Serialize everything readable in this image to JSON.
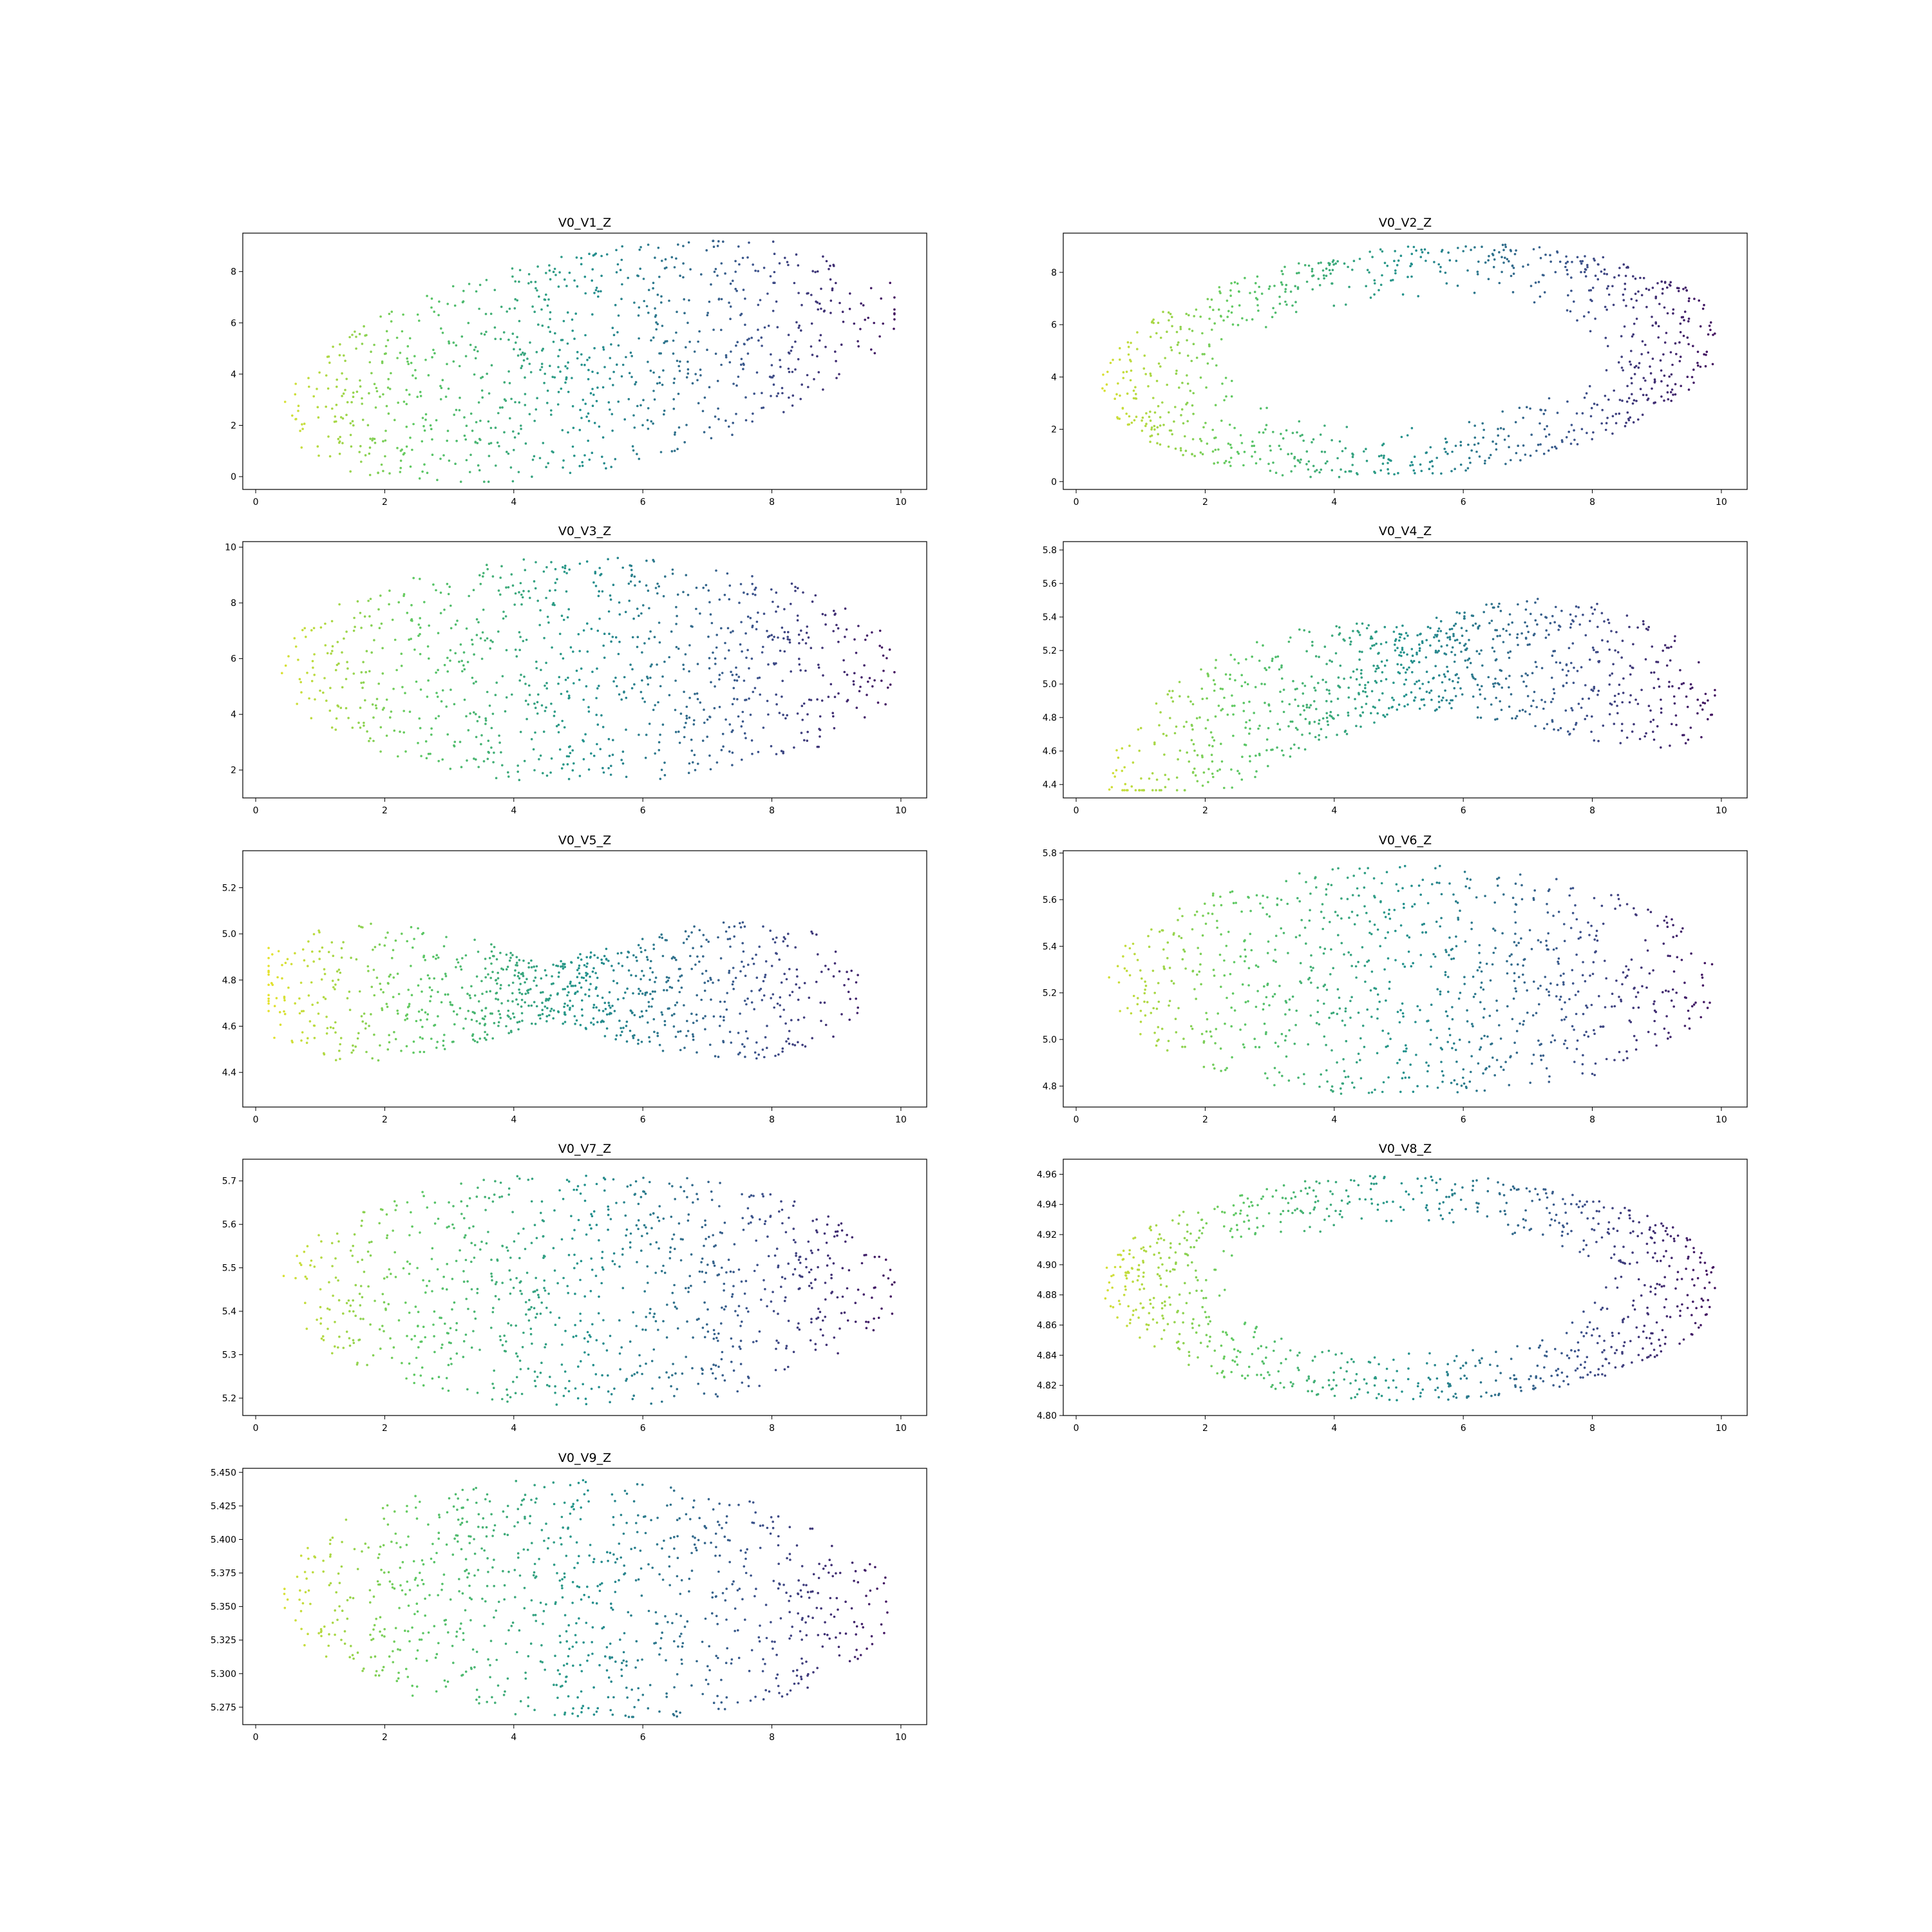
{
  "colormap": {
    "name": "viridis",
    "stops": [
      "#440154",
      "#3b528b",
      "#21918c",
      "#5ec962",
      "#fde725"
    ]
  },
  "chart_data": [
    {
      "type": "scatter",
      "title": "V0_V1_Z",
      "xlim": [
        -0.2,
        10.4
      ],
      "ylim": [
        -0.5,
        9.5
      ],
      "xticks": [
        0,
        2,
        4,
        6,
        8,
        10
      ],
      "xtick_labels": [
        "0",
        "2",
        "4",
        "6",
        "8",
        "10"
      ],
      "yticks": [
        0,
        2,
        4,
        6,
        8
      ],
      "ytick_labels": [
        "0",
        "2",
        "4",
        "6",
        "8"
      ],
      "shape": "ellipse",
      "center": [
        5.2,
        4.5
      ],
      "radii": [
        4.8,
        4.3
      ],
      "tilt": 0.12,
      "color_direction": 1,
      "grid": false,
      "legend": "none"
    },
    {
      "type": "scatter",
      "title": "V0_V2_Z",
      "xlim": [
        -0.2,
        10.4
      ],
      "ylim": [
        -0.3,
        9.5
      ],
      "xticks": [
        0,
        2,
        4,
        6,
        8,
        10
      ],
      "xtick_labels": [
        "0",
        "2",
        "4",
        "6",
        "8",
        "10"
      ],
      "yticks": [
        0,
        2,
        4,
        6,
        8
      ],
      "ytick_labels": [
        "0",
        "2",
        "4",
        "6",
        "8"
      ],
      "shape": "ring",
      "center": [
        5.2,
        4.6
      ],
      "radii": [
        4.8,
        4.4
      ],
      "tilt": 0.05,
      "color_direction": 1,
      "grid": false,
      "legend": "none"
    },
    {
      "type": "scatter",
      "title": "V0_V3_Z",
      "xlim": [
        -0.2,
        10.4
      ],
      "ylim": [
        1.0,
        10.2
      ],
      "xticks": [
        0,
        2,
        4,
        6,
        8,
        10
      ],
      "xtick_labels": [
        "0",
        "2",
        "4",
        "6",
        "8",
        "10"
      ],
      "yticks": [
        2,
        4,
        6,
        8,
        10
      ],
      "ytick_labels": [
        "2",
        "4",
        "6",
        "8",
        "10"
      ],
      "shape": "ellipse",
      "center": [
        5.2,
        5.6
      ],
      "radii": [
        4.8,
        4.1
      ],
      "tilt": 0.0,
      "color_direction": 1,
      "grid": false,
      "legend": "none"
    },
    {
      "type": "scatter",
      "title": "V0_V4_Z",
      "xlim": [
        -0.2,
        10.4
      ],
      "ylim": [
        4.32,
        5.85
      ],
      "xticks": [
        0,
        2,
        4,
        6,
        8,
        10
      ],
      "xtick_labels": [
        "0",
        "2",
        "4",
        "6",
        "8",
        "10"
      ],
      "yticks": [
        4.4,
        4.6,
        4.8,
        5.0,
        5.2,
        5.4,
        5.6,
        5.8
      ],
      "ytick_labels": [
        "4.4",
        "4.6",
        "4.8",
        "5.0",
        "5.2",
        "5.4",
        "5.6",
        "5.8"
      ],
      "shape": "wedge",
      "center": [
        5.2,
        5.1
      ],
      "radii": [
        4.8,
        0.7
      ],
      "tilt": 0.0,
      "color_direction": 1,
      "grid": false,
      "legend": "none"
    },
    {
      "type": "scatter",
      "title": "V0_V5_Z",
      "xlim": [
        -0.2,
        10.4
      ],
      "ylim": [
        4.25,
        5.36
      ],
      "xticks": [
        0,
        2,
        4,
        6,
        8,
        10
      ],
      "xtick_labels": [
        "0",
        "2",
        "4",
        "6",
        "8",
        "10"
      ],
      "yticks": [
        4.4,
        4.6,
        4.8,
        5.0,
        5.2
      ],
      "ytick_labels": [
        "4.4",
        "4.6",
        "4.8",
        "5.0",
        "5.2"
      ],
      "shape": "bowtie",
      "center": [
        4.6,
        4.75
      ],
      "radii": [
        4.8,
        0.5
      ],
      "tilt": 0.0,
      "color_direction": 1,
      "grid": false,
      "legend": "none"
    },
    {
      "type": "scatter",
      "title": "V0_V6_Z",
      "xlim": [
        -0.2,
        10.4
      ],
      "ylim": [
        4.71,
        5.81
      ],
      "xticks": [
        0,
        2,
        4,
        6,
        8,
        10
      ],
      "xtick_labels": [
        "0",
        "2",
        "4",
        "6",
        "8",
        "10"
      ],
      "yticks": [
        4.8,
        5.0,
        5.2,
        5.4,
        5.6,
        5.8
      ],
      "ytick_labels": [
        "4.8",
        "5.0",
        "5.2",
        "5.4",
        "5.6",
        "5.8"
      ],
      "shape": "ellipse",
      "center": [
        5.2,
        5.25
      ],
      "radii": [
        4.8,
        0.5
      ],
      "tilt": 0.0,
      "color_direction": 1,
      "grid": false,
      "legend": "none"
    },
    {
      "type": "scatter",
      "title": "V0_V7_Z",
      "xlim": [
        -0.2,
        10.4
      ],
      "ylim": [
        5.16,
        5.75
      ],
      "xticks": [
        0,
        2,
        4,
        6,
        8,
        10
      ],
      "xtick_labels": [
        "0",
        "2",
        "4",
        "6",
        "8",
        "10"
      ],
      "yticks": [
        5.2,
        5.3,
        5.4,
        5.5,
        5.6,
        5.7
      ],
      "ytick_labels": [
        "5.2",
        "5.3",
        "5.4",
        "5.5",
        "5.6",
        "5.7"
      ],
      "shape": "ellipse",
      "center": [
        5.2,
        5.45
      ],
      "radii": [
        4.8,
        0.27
      ],
      "tilt": 0.0,
      "color_direction": 1,
      "grid": false,
      "legend": "none"
    },
    {
      "type": "scatter",
      "title": "V0_V8_Z",
      "xlim": [
        -0.2,
        10.4
      ],
      "ylim": [
        4.8,
        4.97
      ],
      "xticks": [
        0,
        2,
        4,
        6,
        8,
        10
      ],
      "xtick_labels": [
        "0",
        "2",
        "4",
        "6",
        "8",
        "10"
      ],
      "yticks": [
        4.8,
        4.82,
        4.84,
        4.86,
        4.88,
        4.9,
        4.92,
        4.94,
        4.96
      ],
      "ytick_labels": [
        "4.80",
        "4.82",
        "4.84",
        "4.86",
        "4.88",
        "4.90",
        "4.92",
        "4.94",
        "4.96"
      ],
      "shape": "ring",
      "center": [
        5.2,
        4.885
      ],
      "radii": [
        4.8,
        0.075
      ],
      "tilt": 0.0,
      "color_direction": 1,
      "grid": false,
      "legend": "none"
    },
    {
      "type": "scatter",
      "title": "V0_V9_Z",
      "xlim": [
        -0.2,
        10.4
      ],
      "ylim": [
        5.262,
        5.453
      ],
      "xticks": [
        0,
        2,
        4,
        6,
        8,
        10
      ],
      "xtick_labels": [
        "0",
        "2",
        "4",
        "6",
        "8",
        "10"
      ],
      "yticks": [
        5.275,
        5.3,
        5.325,
        5.35,
        5.375,
        5.4,
        5.425,
        5.45
      ],
      "ytick_labels": [
        "5.275",
        "5.300",
        "5.325",
        "5.350",
        "5.375",
        "5.400",
        "5.425",
        "5.450"
      ],
      "shape": "ellipse",
      "center": [
        5.1,
        5.355
      ],
      "radii": [
        4.8,
        0.09
      ],
      "tilt": -0.012,
      "color_direction": 1,
      "grid": false,
      "legend": "none"
    }
  ]
}
